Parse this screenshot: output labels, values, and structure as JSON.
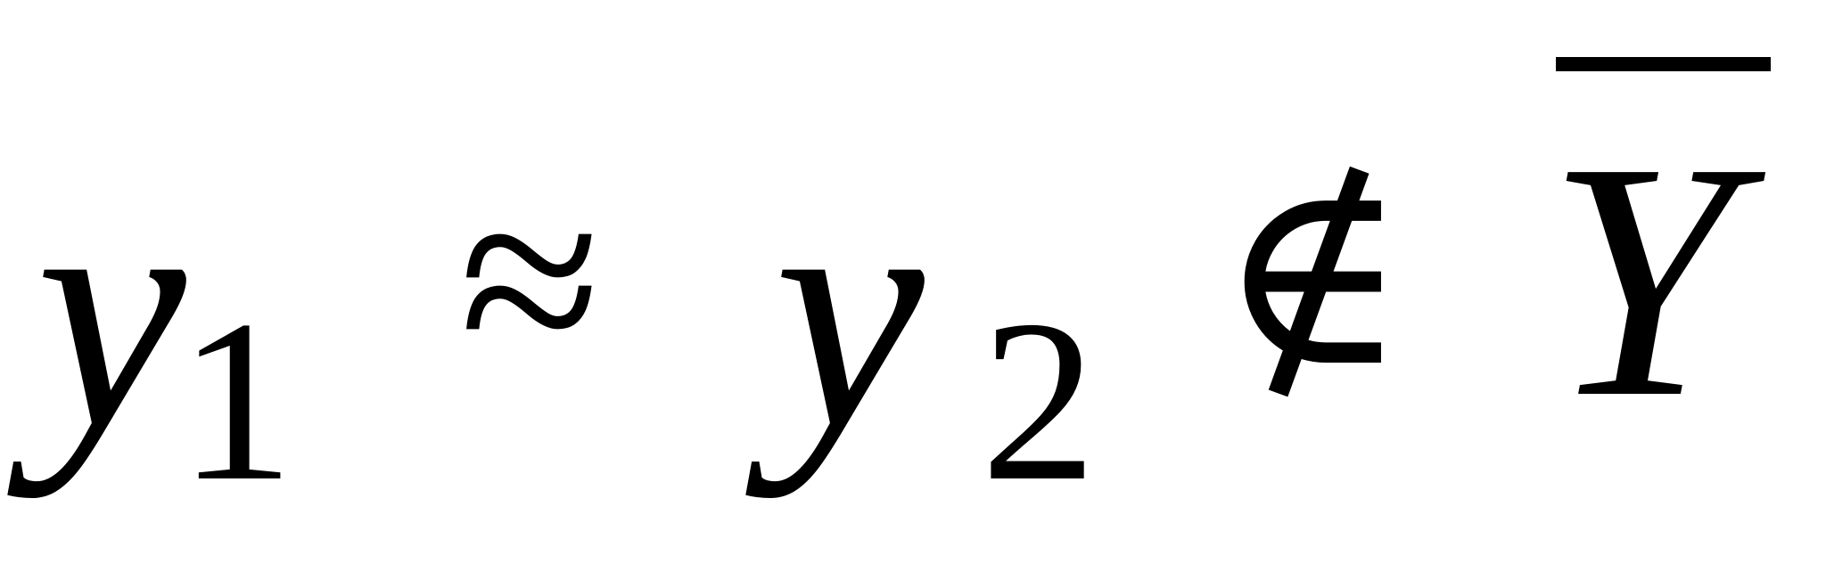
{
  "expression": {
    "lhs_variable": "y",
    "lhs_subscript": "1",
    "approx_symbol": "≈",
    "rhs_variable": "y",
    "rhs_subscript": "2",
    "notin_symbol": "∉",
    "set_symbol": "Y"
  },
  "colors": {
    "foreground": "#000000",
    "background": "#ffffff"
  }
}
